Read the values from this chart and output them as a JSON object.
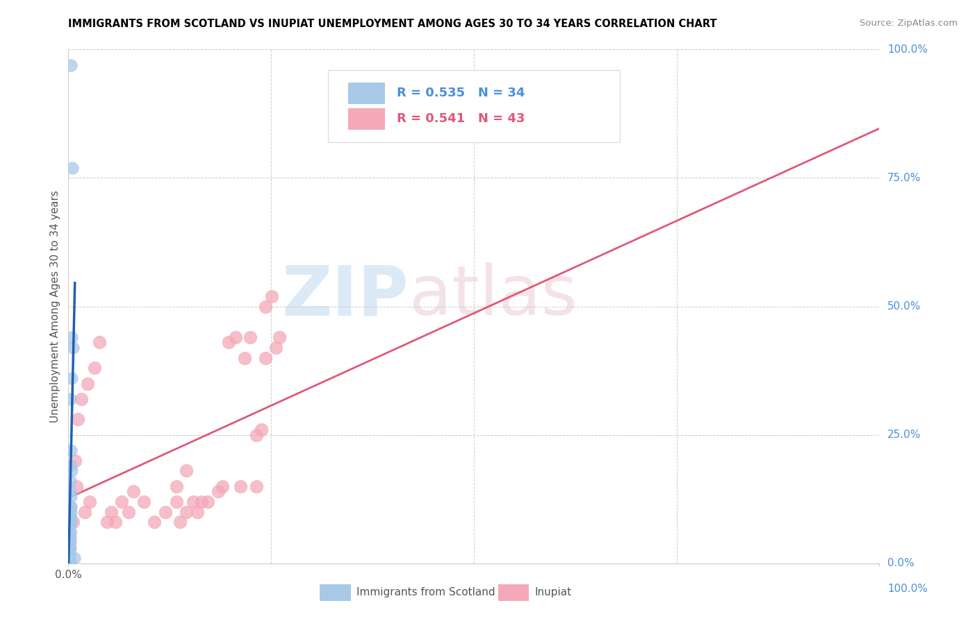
{
  "title": "IMMIGRANTS FROM SCOTLAND VS INUPIAT UNEMPLOYMENT AMONG AGES 30 TO 34 YEARS CORRELATION CHART",
  "source": "Source: ZipAtlas.com",
  "ylabel": "Unemployment Among Ages 30 to 34 years",
  "xlim": [
    0,
    1.0
  ],
  "ylim": [
    0,
    1.0
  ],
  "grid_ticks": [
    0.0,
    0.25,
    0.5,
    0.75,
    1.0
  ],
  "right_ytick_labels": [
    "100.0%",
    "75.0%",
    "50.0%",
    "25.0%",
    "0.0%"
  ],
  "scotland_color": "#a8c8e8",
  "inupiat_color": "#f4a8b8",
  "scotland_line_color": "#2060b0",
  "inupiat_line_color": "#e05878",
  "legend_r_scotland": "R = 0.535",
  "legend_n_scotland": "N = 34",
  "legend_r_inupiat": "R = 0.541",
  "legend_n_inupiat": "N = 43",
  "legend_text_color": "#4a90d9",
  "legend_text_color2": "#e05878",
  "right_label_color": "#4a90d9",
  "scotland_x": [
    0.003,
    0.005,
    0.004,
    0.006,
    0.004,
    0.002,
    0.003,
    0.003,
    0.004,
    0.002,
    0.002,
    0.003,
    0.002,
    0.003,
    0.003,
    0.002,
    0.002,
    0.003,
    0.002,
    0.001,
    0.002,
    0.002,
    0.001,
    0.002,
    0.001,
    0.002,
    0.001,
    0.002,
    0.001,
    0.001,
    0.001,
    0.001,
    0.007,
    0.002
  ],
  "scotland_y": [
    0.97,
    0.77,
    0.44,
    0.42,
    0.36,
    0.32,
    0.22,
    0.19,
    0.18,
    0.16,
    0.14,
    0.13,
    0.11,
    0.11,
    0.1,
    0.09,
    0.09,
    0.08,
    0.08,
    0.07,
    0.06,
    0.06,
    0.05,
    0.05,
    0.04,
    0.04,
    0.03,
    0.03,
    0.03,
    0.02,
    0.02,
    0.01,
    0.01,
    0.005
  ],
  "inupiat_x": [
    0.012,
    0.008,
    0.016,
    0.02,
    0.024,
    0.026,
    0.006,
    0.01,
    0.032,
    0.038,
    0.048,
    0.053,
    0.058,
    0.066,
    0.074,
    0.08,
    0.093,
    0.106,
    0.12,
    0.133,
    0.138,
    0.145,
    0.154,
    0.159,
    0.172,
    0.185,
    0.19,
    0.198,
    0.206,
    0.212,
    0.217,
    0.224,
    0.232,
    0.238,
    0.243,
    0.251,
    0.256,
    0.26,
    0.133,
    0.145,
    0.164,
    0.232,
    0.243
  ],
  "inupiat_y": [
    0.28,
    0.2,
    0.32,
    0.1,
    0.35,
    0.12,
    0.08,
    0.15,
    0.38,
    0.43,
    0.08,
    0.1,
    0.08,
    0.12,
    0.1,
    0.14,
    0.12,
    0.08,
    0.1,
    0.12,
    0.08,
    0.1,
    0.12,
    0.1,
    0.12,
    0.14,
    0.15,
    0.43,
    0.44,
    0.15,
    0.4,
    0.44,
    0.25,
    0.26,
    0.5,
    0.52,
    0.42,
    0.44,
    0.15,
    0.18,
    0.12,
    0.15,
    0.4
  ],
  "watermark_zip": "ZIP",
  "watermark_atlas": "atlas"
}
